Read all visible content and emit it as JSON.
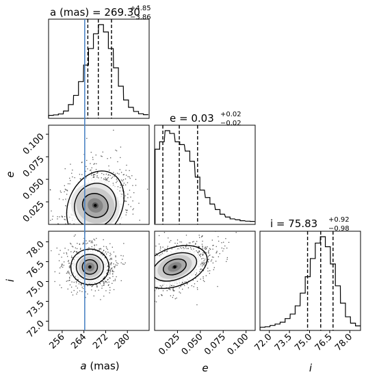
{
  "chart_data": {
    "type": "corner",
    "truth_line": {
      "a": 264.3,
      "color": "#4c84c4"
    },
    "parameters": [
      {
        "key": "a",
        "title_lhs": "a (mas) = 269.30",
        "title_sup": "+4.85",
        "title_sub": "−3.86",
        "axis_label_var": "a",
        "axis_label_unit": " (mas)",
        "range": [
          251,
          288
        ],
        "ticks": [
          {
            "v": 256,
            "label": "256"
          },
          {
            "v": 264,
            "label": "264"
          },
          {
            "v": 272,
            "label": "272"
          },
          {
            "v": 280,
            "label": "280"
          }
        ],
        "quantiles": [
          265.44,
          269.3,
          274.15
        ],
        "hist_centers": [
          251.9,
          253.7,
          255.5,
          257.4,
          259.2,
          261.1,
          262.9,
          264.8,
          266.6,
          268.4,
          270.3,
          272.1,
          273.9,
          275.8,
          277.6,
          279.5,
          281.3,
          283.2,
          285.0,
          286.8
        ],
        "hist_values": [
          0.3,
          0.8,
          1.8,
          5,
          12,
          22,
          37,
          55,
          73,
          89,
          99,
          91,
          73,
          52,
          32,
          17,
          9,
          4.5,
          2,
          1
        ]
      },
      {
        "key": "e",
        "title_lhs": "e = 0.03",
        "title_sup": "+0.02",
        "title_sub": "−0.02",
        "axis_label_var": "e",
        "axis_label_unit": "",
        "range": [
          0,
          0.11
        ],
        "ticks": [
          {
            "v": 0.025,
            "label": "0.025"
          },
          {
            "v": 0.05,
            "label": "0.050"
          },
          {
            "v": 0.075,
            "label": "0.075"
          },
          {
            "v": 0.1,
            "label": "0.100"
          }
        ],
        "quantiles": [
          0.009,
          0.027,
          0.047
        ],
        "hist_centers": [
          0.003,
          0.008,
          0.014,
          0.019,
          0.025,
          0.03,
          0.036,
          0.041,
          0.047,
          0.052,
          0.058,
          0.063,
          0.069,
          0.074,
          0.08,
          0.085,
          0.091,
          0.096,
          0.102,
          0.107
        ],
        "hist_values": [
          78,
          86,
          98,
          95,
          86,
          83,
          76,
          65,
          48,
          34,
          26,
          19,
          13,
          8,
          5,
          3,
          2,
          1,
          0.5,
          0.3
        ]
      },
      {
        "key": "i",
        "title_lhs": "i = 75.83",
        "title_sup": "+0.92",
        "title_sub": "−0.98",
        "axis_label_var": "i",
        "axis_label_unit": "",
        "range": [
          71.3,
          78.8
        ],
        "ticks": [
          {
            "v": 72,
            "label": "72.0"
          },
          {
            "v": 73.5,
            "label": "73.5"
          },
          {
            "v": 75,
            "label": "75.0"
          },
          {
            "v": 76.5,
            "label": "76.5"
          },
          {
            "v": 78,
            "label": "78.0"
          }
        ],
        "quantiles": [
          74.85,
          75.83,
          76.75
        ],
        "hist_centers": [
          71.49,
          71.86,
          72.24,
          72.61,
          72.99,
          73.36,
          73.74,
          74.11,
          74.49,
          74.86,
          75.24,
          75.61,
          75.99,
          76.36,
          76.74,
          77.11,
          77.49,
          77.86,
          78.24,
          78.61
        ],
        "hist_values": [
          0.5,
          1,
          2.5,
          4,
          6,
          10,
          15,
          24,
          38,
          56,
          76,
          93,
          100,
          89,
          70,
          46,
          27,
          12,
          5,
          2
        ]
      }
    ],
    "pairs": [
      {
        "x": "a",
        "y": "e",
        "center": [
          268.2,
          0.021
        ],
        "rx": [
          4.8,
          7.5,
          9.8
        ],
        "ry": [
          0.013,
          0.025,
          0.04
        ],
        "tilt": 0.45
      },
      {
        "x": "a",
        "y": "i",
        "center": [
          266.2,
          76.1
        ],
        "rx": [
          2.8,
          5.0,
          7.0
        ],
        "ry": [
          0.55,
          0.95,
          1.35
        ],
        "tilt": 0.0
      },
      {
        "x": "e",
        "y": "i",
        "center": [
          0.022,
          76.1
        ],
        "rx": [
          0.013,
          0.025,
          0.037
        ],
        "ry": [
          0.55,
          0.95,
          1.45
        ],
        "tilt": -0.35
      }
    ]
  }
}
